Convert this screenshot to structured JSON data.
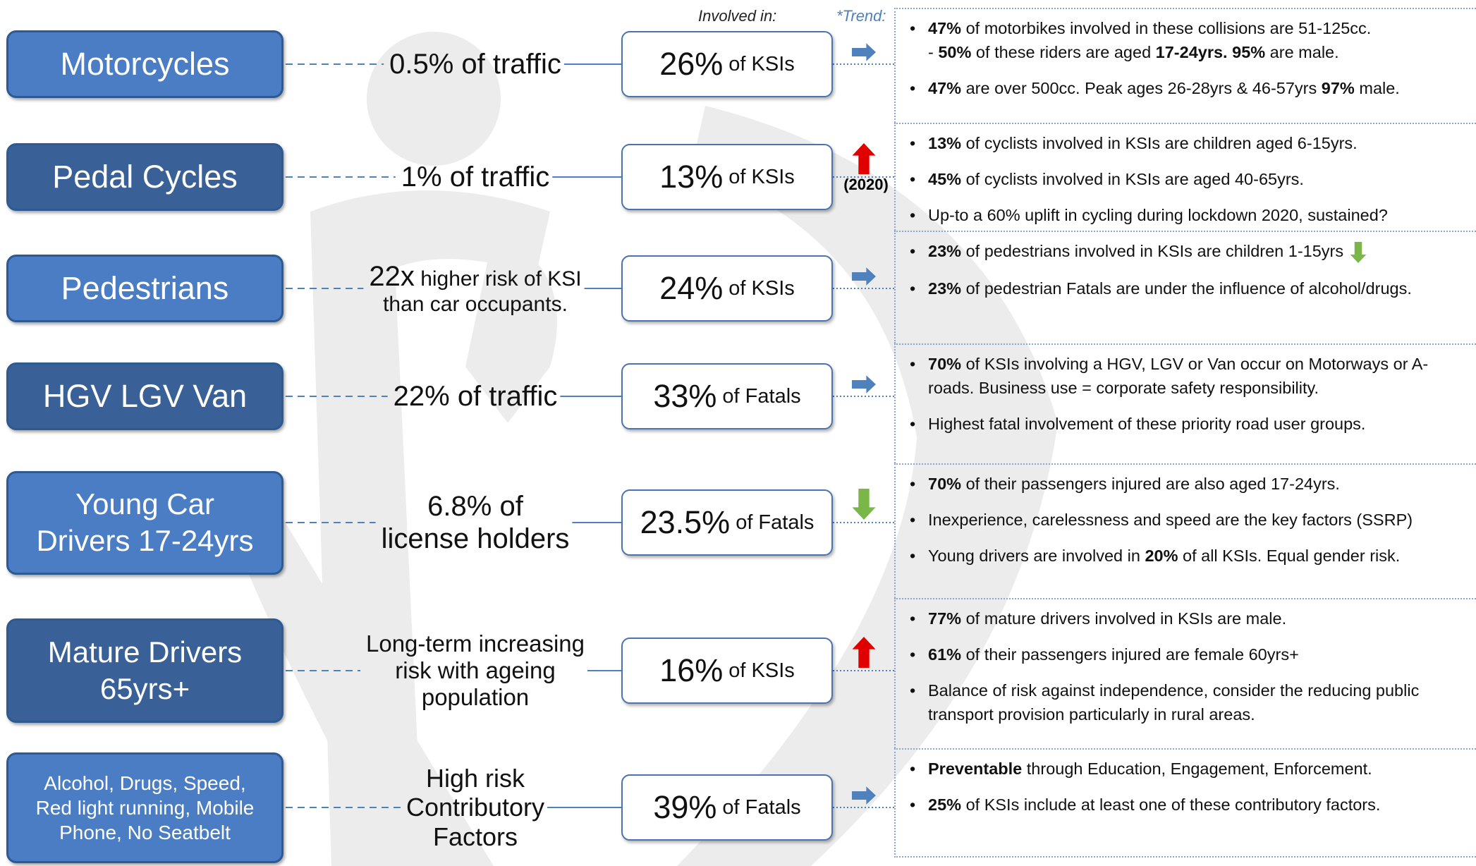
{
  "header": {
    "involved": "Involved in:",
    "trend": "*Trend:"
  },
  "rows": [
    {
      "label": "Motorcycles",
      "color": "#4a7dc4",
      "note": "0.5% of traffic",
      "pct": "26%",
      "unit": "of KSIs",
      "trend": {
        "direction": "right",
        "color": "#4f81bd"
      },
      "bullets": [
        {
          "runs": [
            {
              "bold": "47%"
            },
            " of motorbikes involved in these collisions are 51-125cc.\n- ",
            {
              "bold": "50%"
            },
            " of these riders are aged ",
            {
              "bold": "17-24yrs. 95%"
            },
            " are male."
          ]
        },
        {
          "runs": [
            {
              "bold": "47%"
            },
            " are over 500cc. Peak ages 26-28yrs & 46-57yrs ",
            {
              "bold": "97%"
            },
            " male."
          ]
        }
      ]
    },
    {
      "label": "Pedal Cycles",
      "color": "#3a6098",
      "note": "1% of traffic",
      "pct": "13%",
      "unit": "of KSIs",
      "trend": {
        "direction": "up",
        "color": "#e00000",
        "label": "(2020)"
      },
      "bullets": [
        {
          "runs": [
            {
              "bold": "13%"
            },
            " of cyclists involved in KSIs are children aged 6-15yrs."
          ]
        },
        {
          "runs": [
            {
              "bold": "45%"
            },
            " of cyclists involved in KSIs are aged 40-65yrs."
          ]
        },
        {
          "runs": [
            "Up-to a 60% uplift in cycling during lockdown 2020, sustained?"
          ]
        }
      ]
    },
    {
      "label": "Pedestrians",
      "color": "#4a7dc4",
      "note_big": "22x",
      "note": "higher risk of KSI\nthan car occupants.",
      "pct": "24%",
      "unit": "of KSIs",
      "trend": {
        "direction": "right",
        "color": "#4f81bd"
      },
      "bullets": [
        {
          "runs": [
            {
              "bold": "23%"
            },
            " of pedestrians involved in KSIs are children 1-15yrs"
          ],
          "arrow": {
            "direction": "down",
            "color": "#7ab648"
          }
        },
        {
          "runs": [
            {
              "bold": "23%"
            },
            " of pedestrian Fatals are under the influence of alcohol/drugs."
          ]
        }
      ]
    },
    {
      "label": "HGV LGV Van",
      "color": "#3a6098",
      "note": "22% of traffic",
      "pct": "33%",
      "unit": "of Fatals",
      "trend": {
        "direction": "right",
        "color": "#4f81bd"
      },
      "bullets": [
        {
          "runs": [
            {
              "bold": "70%"
            },
            " of KSIs involving a HGV, LGV or Van occur on Motorways or A-roads. Business use = corporate safety responsibility."
          ]
        },
        {
          "runs": [
            "Highest fatal involvement of these priority road user groups."
          ]
        }
      ]
    },
    {
      "label": "Young Car\nDrivers 17-24yrs",
      "color": "#4a7dc4",
      "note": "6.8% of\nlicense holders",
      "pct": "23.5%",
      "unit": "of Fatals",
      "trend": {
        "direction": "down",
        "color": "#7ab648"
      },
      "bullets": [
        {
          "runs": [
            {
              "bold": "70%"
            },
            " of their passengers injured are also aged 17-24yrs."
          ]
        },
        {
          "runs": [
            "Inexperience, carelessness and speed are the key factors (SSRP)"
          ]
        },
        {
          "runs": [
            "Young drivers are involved in ",
            {
              "bold": "20%"
            },
            " of all KSIs. Equal gender risk."
          ]
        }
      ]
    },
    {
      "label": "Mature Drivers\n65yrs+",
      "color": "#3a6098",
      "note": "Long-term increasing\nrisk with ageing\npopulation",
      "pct": "16%",
      "unit": "of KSIs",
      "trend": {
        "direction": "up",
        "color": "#e00000"
      },
      "bullets": [
        {
          "runs": [
            {
              "bold": "77%"
            },
            " of mature drivers involved in KSIs are male."
          ]
        },
        {
          "runs": [
            {
              "bold": "61%"
            },
            " of their passengers injured are female 60yrs+"
          ]
        },
        {
          "runs": [
            "Balance of risk against independence, consider the reducing public transport provision particularly in rural areas."
          ]
        }
      ]
    },
    {
      "label": "Alcohol, Drugs, Speed,\nRed light running, Mobile\nPhone, No Seatbelt",
      "color": "#4a7dc4",
      "note": "High risk\nContributory\nFactors",
      "pct": "39%",
      "unit": "of Fatals",
      "trend": {
        "direction": "right",
        "color": "#4f81bd"
      },
      "bullets": [
        {
          "runs": [
            {
              "bold": "Preventable"
            },
            " through Education, Engagement, Enforcement."
          ]
        },
        {
          "runs": [
            {
              "bold": "25%"
            },
            " of KSIs include at least one of these contributory factors."
          ]
        }
      ]
    }
  ]
}
